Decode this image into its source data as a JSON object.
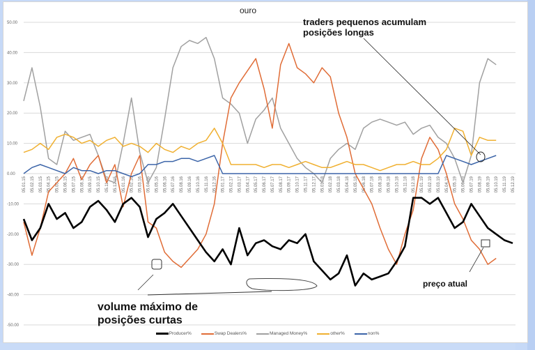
{
  "chart_data": {
    "type": "line",
    "title": "ouro",
    "xlabel": "",
    "ylabel": "",
    "ylim": [
      -50,
      50
    ],
    "yticks": [
      "50.00",
      "40.00",
      "30.00",
      "20.00",
      "10.00",
      "0.00",
      "-10.00",
      "-20.00",
      "-30.00",
      "-40.00",
      "-50.00"
    ],
    "grid": true,
    "legend_position": "bottom",
    "x": [
      "05.01.15",
      "05.02.15",
      "05.03.15",
      "05.04.15",
      "05.05.15",
      "05.06.15",
      "05.07.15",
      "05.08.15",
      "05.09.15",
      "05.10.15",
      "05.11.15",
      "05.12.15",
      "05.01.16",
      "05.02.16",
      "05.03.16",
      "05.04.16",
      "05.05.16",
      "05.06.16",
      "05.07.16",
      "05.08.16",
      "05.09.16",
      "05.10.16",
      "05.11.16",
      "05.12.16",
      "05.01.17",
      "05.02.17",
      "05.03.17",
      "05.04.17",
      "05.05.17",
      "05.06.17",
      "05.07.17",
      "05.08.17",
      "05.09.17",
      "05.10.17",
      "05.11.17",
      "05.12.17",
      "05.01.18",
      "05.02.18",
      "05.03.18",
      "05.04.18",
      "05.05.18",
      "05.06.18",
      "05.07.18",
      "05.08.18",
      "05.09.18",
      "05.10.18",
      "05.11.18",
      "05.12.18",
      "05.01.19",
      "05.02.19",
      "05.03.19",
      "05.04.19",
      "05.05.19",
      "05.06.19",
      "05.07.19",
      "05.08.19",
      "05.09.19",
      "05.10.19",
      "05.11.19",
      "05.12.19"
    ],
    "series": [
      {
        "name": "Producer%",
        "color": "#000000",
        "values": [
          -15,
          -22,
          -18,
          -10,
          -15,
          -13,
          -18,
          -16,
          -11,
          -9,
          -12,
          -16,
          -10,
          -8,
          -11,
          -21,
          -15,
          -13,
          -10,
          -14,
          -18,
          -22,
          -26,
          -29,
          -25,
          -30,
          -18,
          -27,
          -23,
          -22,
          -24,
          -25,
          -22,
          -23,
          -20,
          -29,
          -32,
          -35,
          -33,
          -27,
          -37,
          -33,
          -35,
          -34,
          -33,
          -29,
          -24,
          -8,
          -8,
          -10,
          -8,
          -13,
          -18,
          -16,
          -10,
          -14,
          -18,
          -20,
          -22,
          -23
        ]
      },
      {
        "name": "Swap Dealers%",
        "color": "#e06c36",
        "values": [
          -16,
          -27,
          -18,
          -6,
          -3,
          0,
          5,
          -2,
          3,
          6,
          -3,
          3,
          -11,
          0,
          6,
          -16,
          -18,
          -26,
          -29,
          -31,
          -28,
          -25,
          -20,
          -10,
          10,
          25,
          30,
          34,
          38,
          28,
          15,
          36,
          43,
          35,
          33,
          30,
          35,
          32,
          20,
          12,
          0,
          -5,
          -10,
          -18,
          -25,
          -30,
          -20,
          -12,
          5,
          12,
          8,
          0,
          -10,
          -15,
          -22,
          -25,
          -30,
          -28,
          null,
          null
        ]
      },
      {
        "name": "Managed Money%",
        "color": "#a0a0a0",
        "values": [
          24,
          35,
          22,
          5,
          3,
          14,
          11,
          12,
          13,
          6,
          -2,
          -3,
          10,
          25,
          7,
          -3,
          2,
          18,
          35,
          42,
          44,
          43,
          45,
          38,
          25,
          23,
          20,
          10,
          18,
          21,
          25,
          15,
          10,
          5,
          2,
          0,
          -3,
          5,
          8,
          10,
          8,
          15,
          17,
          18,
          17,
          16,
          17,
          13,
          15,
          16,
          12,
          10,
          5,
          -3,
          6,
          30,
          38,
          36,
          null,
          null
        ]
      },
      {
        "name": "other%",
        "color": "#f0b030",
        "values": [
          7,
          8,
          10,
          8,
          12,
          13,
          12,
          10,
          11,
          9,
          11,
          12,
          9,
          10,
          9,
          7,
          10,
          8,
          7,
          9,
          8,
          10,
          11,
          15,
          10,
          3,
          3,
          3,
          3,
          2,
          3,
          3,
          2,
          3,
          4,
          3,
          2,
          2,
          3,
          4,
          3,
          3,
          2,
          1,
          2,
          3,
          3,
          4,
          3,
          3,
          5,
          8,
          15,
          14,
          6,
          12,
          11,
          11,
          null,
          null
        ]
      },
      {
        "name": "non%",
        "color": "#3b64a8",
        "values": [
          0,
          2,
          3,
          2,
          1,
          0,
          2,
          1,
          1,
          0,
          1,
          1,
          0,
          -1,
          0,
          3,
          3,
          4,
          4,
          5,
          5,
          4,
          5,
          6,
          0,
          0,
          0,
          0,
          0,
          0,
          0,
          0,
          0,
          0,
          0,
          0,
          0,
          0,
          0,
          0,
          0,
          0,
          0,
          0,
          0,
          0,
          0,
          0,
          0,
          0,
          0,
          6,
          5,
          4,
          3,
          4,
          5,
          6,
          null,
          null
        ]
      }
    ],
    "annotations": [
      {
        "text": "traders pequenos acumulam posições longas",
        "target": "non% / other% near 05.08.19"
      },
      {
        "text": "volume máximo de posições curtas",
        "target": "Producer% near 05.06.16 and 05.10.17"
      },
      {
        "text": "preço atual",
        "target": "Producer% near 05.08.19"
      }
    ]
  },
  "annotations": {
    "longs_line1": "traders pequenos acumulam",
    "longs_line2": "posições longas",
    "shorts_line1": "volume máximo de",
    "shorts_line2": "posições curtas",
    "current_price": "preço atual"
  },
  "legend": [
    {
      "label": "Producer%",
      "color": "#000000"
    },
    {
      "label": "Swap Dealers%",
      "color": "#e06c36"
    },
    {
      "label": "Managed Money%",
      "color": "#a0a0a0"
    },
    {
      "label": "other%",
      "color": "#f0b030"
    },
    {
      "label": "non%",
      "color": "#3b64a8"
    }
  ]
}
